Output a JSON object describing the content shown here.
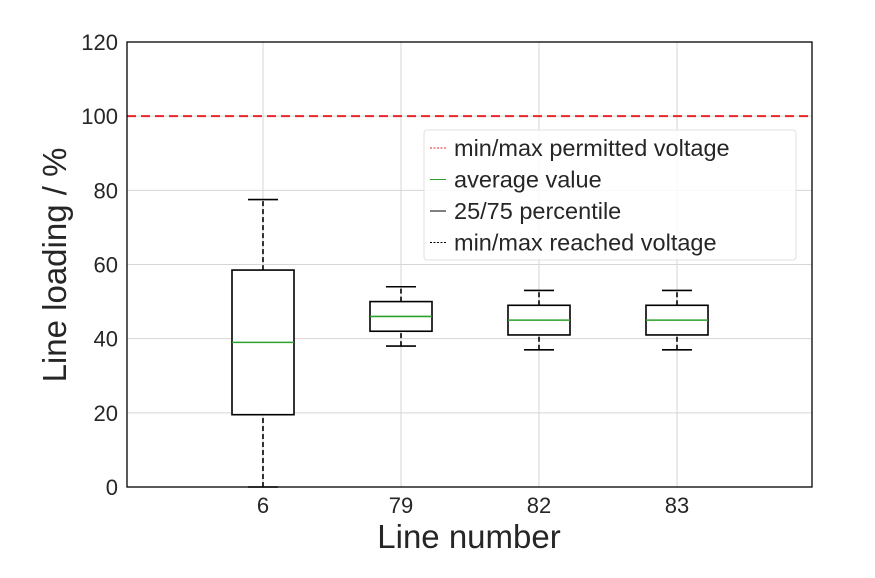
{
  "chart_data": {
    "type": "box",
    "title": "",
    "xlabel": "Line number",
    "ylabel": "Line loading / %",
    "ylim": [
      0,
      120
    ],
    "yticks": [
      0,
      20,
      40,
      60,
      80,
      100,
      120
    ],
    "grid": true,
    "categories": [
      "6",
      "79",
      "82",
      "83"
    ],
    "boxes": [
      {
        "category": "6",
        "min": 0,
        "q1": 19.5,
        "median": 39,
        "q3": 58.5,
        "max": 77.5
      },
      {
        "category": "79",
        "min": 38,
        "q1": 42,
        "median": 46,
        "q3": 50,
        "max": 54
      },
      {
        "category": "82",
        "min": 37,
        "q1": 41,
        "median": 45,
        "q3": 49,
        "max": 53
      },
      {
        "category": "83",
        "min": 37,
        "q1": 41,
        "median": 45,
        "q3": 49,
        "max": 53
      }
    ],
    "reference_line": {
      "value": 100,
      "color": "#e8272a",
      "style": "dashed"
    },
    "legend": {
      "position": "upper-right",
      "entries": [
        {
          "label": "min/max permitted voltage",
          "color": "#e8272a",
          "style": "dashed"
        },
        {
          "label": "average value",
          "color": "#2ca02c",
          "style": "solid"
        },
        {
          "label": "25/75 percentile",
          "color": "#000000",
          "style": "solid"
        },
        {
          "label": "min/max reached voltage",
          "color": "#000000",
          "style": "dashed"
        }
      ]
    },
    "colors": {
      "box": "#000000",
      "median": "#2ca02c",
      "grid": "#d6d6d6"
    }
  }
}
